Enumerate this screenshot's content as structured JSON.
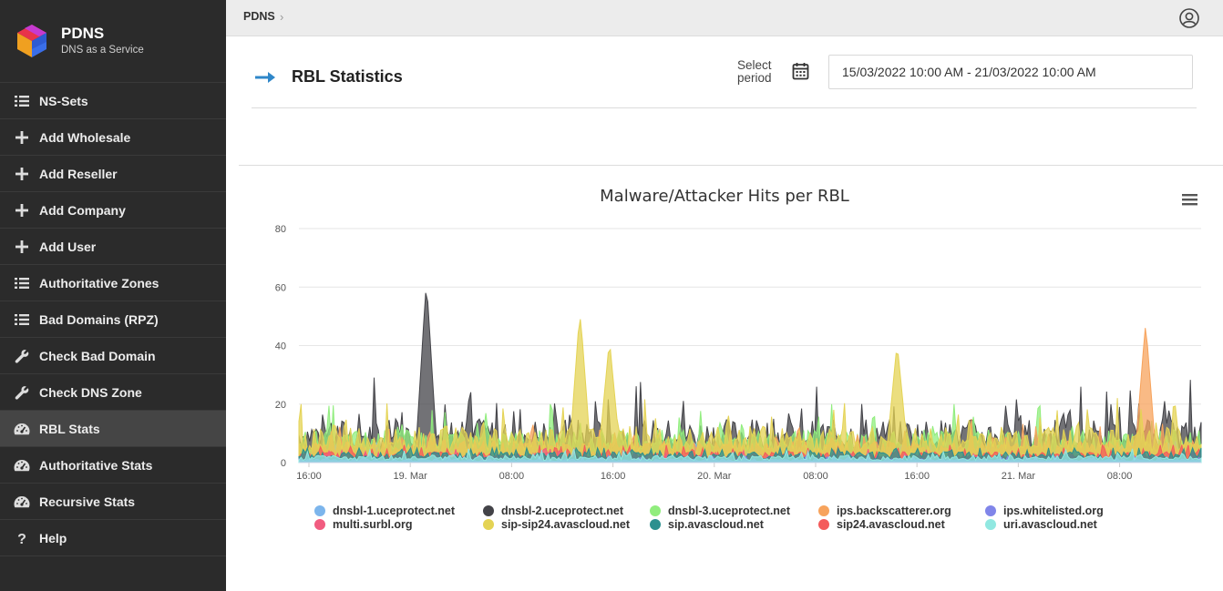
{
  "brand": {
    "name": "PDNS",
    "subtitle": "DNS as a Service"
  },
  "sidebar": {
    "items": [
      {
        "label": "NS-Sets",
        "icon": "list-icon",
        "active": false
      },
      {
        "label": "Add Wholesale",
        "icon": "plus-icon",
        "active": false
      },
      {
        "label": "Add Reseller",
        "icon": "plus-icon",
        "active": false
      },
      {
        "label": "Add Company",
        "icon": "plus-icon",
        "active": false
      },
      {
        "label": "Add User",
        "icon": "plus-icon",
        "active": false
      },
      {
        "label": "Authoritative Zones",
        "icon": "list-icon",
        "active": false
      },
      {
        "label": "Bad Domains (RPZ)",
        "icon": "list-icon",
        "active": false
      },
      {
        "label": "Check Bad Domain",
        "icon": "wrench-icon",
        "active": false
      },
      {
        "label": "Check DNS Zone",
        "icon": "wrench-icon",
        "active": false
      },
      {
        "label": "RBL Stats",
        "icon": "dashboard-icon",
        "active": true
      },
      {
        "label": "Authoritative Stats",
        "icon": "dashboard-icon",
        "active": false
      },
      {
        "label": "Recursive Stats",
        "icon": "dashboard-icon",
        "active": false
      },
      {
        "label": "Help",
        "icon": "question-icon",
        "active": false
      }
    ]
  },
  "breadcrumb": {
    "root": "PDNS",
    "separator": "›"
  },
  "page": {
    "title": "RBL Statistics",
    "period_label": "Select period",
    "period_value": "15/03/2022 10:00 AM - 21/03/2022 10:00 AM"
  },
  "colors": {
    "sidebar_bg": "#2b2b2b",
    "accent": "#2f87c9"
  },
  "chart_data": {
    "type": "area",
    "title": "Malware/Attacker Hits per RBL",
    "ylabel": "",
    "ylim": [
      0,
      80
    ],
    "yticks": [
      0,
      20,
      40,
      60,
      80
    ],
    "xticks": [
      "16:00",
      "19. Mar",
      "08:00",
      "16:00",
      "20. Mar",
      "08:00",
      "16:00",
      "21. Mar",
      "08:00"
    ],
    "x_range_hours": [
      0,
      138
    ],
    "legend_position": "bottom",
    "series": [
      {
        "name": "dnsbl-1.uceprotect.net",
        "color": "#7cb5ec",
        "peak": 14,
        "base": 3
      },
      {
        "name": "dnsbl-2.uceprotect.net",
        "color": "#434348",
        "peak": 58,
        "base": 12
      },
      {
        "name": "dnsbl-3.uceprotect.net",
        "color": "#90ed7d",
        "peak": 20,
        "base": 9
      },
      {
        "name": "ips.backscatterer.org",
        "color": "#f7a35c",
        "peak": 46,
        "base": 6
      },
      {
        "name": "ips.whitelisted.org",
        "color": "#8085e9",
        "peak": 4,
        "base": 1
      },
      {
        "name": "multi.surbl.org",
        "color": "#f15c80",
        "peak": 6,
        "base": 2
      },
      {
        "name": "sip-sip24.avascloud.net",
        "color": "#e4d354",
        "peak": 49,
        "base": 10
      },
      {
        "name": "sip.avascloud.net",
        "color": "#2b908f",
        "peak": 5,
        "base": 3
      },
      {
        "name": "sip24.avascloud.net",
        "color": "#f45b5b",
        "peak": 6,
        "base": 3
      },
      {
        "name": "uri.avascloud.net",
        "color": "#91e8e1",
        "peak": 5,
        "base": 2
      }
    ],
    "spikes": [
      {
        "hour": 19.5,
        "value": 58,
        "series": "dnsbl-2.uceprotect.net"
      },
      {
        "hour": 43,
        "value": 49,
        "series": "sip-sip24.avascloud.net"
      },
      {
        "hour": 47.5,
        "value": 38,
        "series": "sip-sip24.avascloud.net"
      },
      {
        "hour": 91.5,
        "value": 37,
        "series": "sip-sip24.avascloud.net"
      },
      {
        "hour": 129.5,
        "value": 46,
        "series": "ips.backscatterer.org"
      }
    ]
  }
}
